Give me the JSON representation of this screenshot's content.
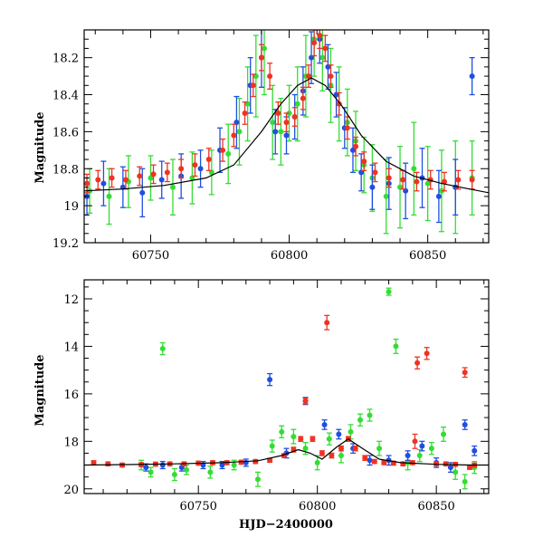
{
  "chart_data": [
    {
      "type": "scatter",
      "panel": "top",
      "title": "",
      "xlabel": "",
      "ylabel": "Magnitude",
      "xlim": [
        60726,
        60872
      ],
      "ylim": [
        19.2,
        18.05
      ],
      "y_inverted": true,
      "grid": false,
      "legend": "none",
      "xticks": [
        60750,
        60800,
        60850
      ],
      "yticks": [
        18.2,
        18.4,
        18.6,
        18.8,
        19,
        19.2
      ],
      "series": [
        {
          "color": "#33dd33",
          "x": [
            60728,
            60735,
            60742,
            60750,
            60758,
            60765,
            60772,
            60778,
            60782,
            60785,
            60788,
            60791,
            60794,
            60797,
            60800,
            60803,
            60806,
            60809,
            60812,
            60815,
            60818,
            60821,
            60824,
            60827,
            60830,
            60835,
            60840,
            60845,
            60850,
            60855,
            60860,
            60866
          ],
          "y": [
            18.92,
            18.95,
            18.87,
            18.85,
            18.9,
            18.85,
            18.82,
            18.72,
            18.6,
            18.45,
            18.3,
            18.15,
            18.55,
            18.6,
            18.5,
            18.45,
            18.3,
            18.1,
            18.2,
            18.35,
            18.45,
            18.55,
            18.65,
            18.78,
            18.85,
            18.95,
            18.9,
            18.8,
            18.88,
            18.92,
            18.9,
            18.85
          ],
          "err": [
            0.12,
            0.15,
            0.14,
            0.12,
            0.15,
            0.14,
            0.12,
            0.16,
            0.18,
            0.2,
            0.22,
            0.25,
            0.2,
            0.18,
            0.15,
            0.2,
            0.22,
            0.2,
            0.18,
            0.2,
            0.2,
            0.18,
            0.16,
            0.15,
            0.18,
            0.2,
            0.22,
            0.25,
            0.2,
            0.22,
            0.25,
            0.2
          ]
        },
        {
          "color": "#1f4fe0",
          "x": [
            60727,
            60733,
            60740,
            60747,
            60754,
            60761,
            60768,
            60775,
            60781,
            60786,
            60790,
            60795,
            60799,
            60802,
            60805,
            60808,
            60811,
            60814,
            60817,
            60820,
            60823,
            60826,
            60830,
            60836,
            60842,
            60848,
            60854,
            60860,
            60866
          ],
          "y": [
            18.95,
            18.88,
            18.9,
            18.93,
            18.86,
            18.84,
            18.8,
            18.7,
            18.55,
            18.35,
            18.2,
            18.6,
            18.62,
            18.52,
            18.38,
            18.2,
            18.1,
            18.25,
            18.4,
            18.58,
            18.7,
            18.82,
            18.9,
            18.88,
            18.92,
            18.85,
            18.95,
            18.9,
            18.3
          ],
          "err": [
            0.1,
            0.12,
            0.11,
            0.13,
            0.1,
            0.12,
            0.1,
            0.12,
            0.14,
            0.15,
            0.16,
            0.12,
            0.1,
            0.12,
            0.13,
            0.14,
            0.13,
            0.12,
            0.12,
            0.11,
            0.12,
            0.1,
            0.12,
            0.14,
            0.15,
            0.16,
            0.14,
            0.15,
            0.1
          ]
        },
        {
          "color": "#ee3322",
          "x": [
            60727,
            60731,
            60736,
            60741,
            60746,
            60751,
            60756,
            60761,
            60766,
            60771,
            60776,
            60780,
            60784,
            60787,
            60790,
            60793,
            60796,
            60799,
            60802,
            60805,
            60807,
            60809,
            60811,
            60813,
            60815,
            60818,
            60821,
            60824,
            60827,
            60831,
            60836,
            60841,
            60846,
            60851,
            60856,
            60861,
            60866
          ],
          "y": [
            18.88,
            18.86,
            18.85,
            18.86,
            18.84,
            18.83,
            18.82,
            18.8,
            18.78,
            18.75,
            18.7,
            18.62,
            18.5,
            18.35,
            18.2,
            18.3,
            18.5,
            18.55,
            18.52,
            18.42,
            18.3,
            18.12,
            18.08,
            18.15,
            18.3,
            18.45,
            18.58,
            18.68,
            18.76,
            18.82,
            18.85,
            18.86,
            18.87,
            18.86,
            18.87,
            18.86,
            18.86
          ],
          "err": [
            0.05,
            0.05,
            0.05,
            0.05,
            0.05,
            0.05,
            0.05,
            0.05,
            0.06,
            0.06,
            0.06,
            0.06,
            0.06,
            0.06,
            0.07,
            0.07,
            0.06,
            0.05,
            0.05,
            0.06,
            0.06,
            0.07,
            0.07,
            0.07,
            0.06,
            0.06,
            0.06,
            0.05,
            0.05,
            0.05,
            0.05,
            0.05,
            0.05,
            0.05,
            0.05,
            0.05,
            0.05
          ]
        }
      ],
      "model_curve": {
        "color": "#000000",
        "x": [
          60726,
          60740,
          60755,
          60770,
          60780,
          60790,
          60797,
          60803,
          60808,
          60813,
          60819,
          60826,
          60835,
          60845,
          60855,
          60865,
          60872
        ],
        "y": [
          18.92,
          18.91,
          18.89,
          18.85,
          18.78,
          18.6,
          18.45,
          18.35,
          18.31,
          18.35,
          18.46,
          18.62,
          18.76,
          18.84,
          18.88,
          18.91,
          18.93
        ]
      }
    },
    {
      "type": "scatter",
      "panel": "bottom",
      "title": "",
      "xlabel": "HJD−2400000",
      "ylabel": "Magnitude",
      "xlim": [
        60702,
        60872
      ],
      "ylim": [
        20.2,
        11.2
      ],
      "y_inverted": true,
      "grid": false,
      "legend": "none",
      "xticks": [
        60750,
        60800,
        60850
      ],
      "yticks": [
        12,
        14,
        16,
        18,
        20
      ],
      "series": [
        {
          "color": "#33dd33",
          "x": [
            60726,
            60730,
            60735,
            60740,
            60745,
            60755,
            60765,
            60775,
            60781,
            60785,
            60790,
            60795,
            60800,
            60805,
            60810,
            60814,
            60818,
            60822,
            60826,
            60830,
            60833,
            60838,
            60843,
            60848,
            60853,
            60858,
            60862,
            60866
          ],
          "y": [
            19.0,
            19.3,
            14.1,
            19.4,
            19.2,
            19.3,
            19.0,
            19.6,
            18.2,
            17.6,
            17.8,
            18.3,
            18.9,
            17.9,
            18.6,
            17.6,
            17.1,
            16.9,
            18.3,
            11.7,
            14.0,
            18.9,
            18.6,
            18.3,
            17.7,
            19.3,
            19.7,
            19.1
          ],
          "err": [
            0.2,
            0.2,
            0.25,
            0.25,
            0.2,
            0.25,
            0.2,
            0.3,
            0.25,
            0.25,
            0.3,
            0.25,
            0.3,
            0.25,
            0.3,
            0.3,
            0.25,
            0.25,
            0.3,
            0.15,
            0.3,
            0.3,
            0.25,
            0.25,
            0.3,
            0.3,
            0.3,
            0.25
          ]
        },
        {
          "color": "#1f4fe0",
          "x": [
            60728,
            60735,
            60743,
            60752,
            60760,
            60770,
            60780,
            60787,
            60795,
            60803,
            60809,
            60815,
            60822,
            60830,
            60838,
            60844,
            60850,
            60856,
            60862,
            60866
          ],
          "y": [
            19.1,
            19.0,
            19.1,
            19.0,
            19.0,
            18.9,
            15.4,
            18.5,
            16.3,
            17.3,
            17.7,
            18.3,
            18.8,
            18.8,
            18.6,
            18.2,
            18.9,
            19.1,
            17.3,
            18.4
          ],
          "err": [
            0.15,
            0.15,
            0.15,
            0.15,
            0.15,
            0.15,
            0.25,
            0.2,
            0.15,
            0.2,
            0.2,
            0.2,
            0.2,
            0.2,
            0.2,
            0.2,
            0.2,
            0.2,
            0.2,
            0.2
          ]
        },
        {
          "color": "#ee3322",
          "x": [
            60706,
            60712,
            60718,
            60726,
            60732,
            60738,
            60744,
            60750,
            60756,
            60762,
            60768,
            60774,
            60780,
            60786,
            60790,
            60793,
            60795,
            60798,
            60802,
            60806,
            60810,
            60813,
            60816,
            60820,
            60824,
            60828,
            60832,
            60836,
            60840,
            60842,
            60846,
            60850,
            60854,
            60858,
            60862,
            60864,
            60866
          ],
          "y": [
            18.9,
            18.95,
            19.0,
            18.98,
            18.96,
            18.95,
            18.95,
            18.92,
            18.9,
            18.9,
            18.88,
            18.85,
            18.8,
            18.6,
            18.35,
            17.9,
            16.3,
            17.9,
            18.5,
            18.6,
            18.3,
            17.9,
            18.3,
            18.7,
            18.85,
            18.9,
            18.92,
            18.95,
            18.9,
            14.7,
            14.3,
            18.95,
            18.95,
            18.97,
            15.1,
            19.1,
            19.0
          ],
          "err": [
            0.08,
            0.08,
            0.08,
            0.08,
            0.08,
            0.08,
            0.08,
            0.08,
            0.08,
            0.08,
            0.08,
            0.08,
            0.08,
            0.08,
            0.1,
            0.1,
            0.12,
            0.1,
            0.1,
            0.1,
            0.1,
            0.1,
            0.1,
            0.1,
            0.08,
            0.08,
            0.08,
            0.08,
            0.08,
            0.25,
            0.25,
            0.08,
            0.08,
            0.08,
            0.2,
            0.08,
            0.08
          ]
        },
        {
          "color": "#ee3322",
          "x": [
            60804,
            60841
          ],
          "y": [
            13.0,
            18.0
          ],
          "err": [
            0.3,
            0.3
          ]
        }
      ],
      "model_curve": {
        "color": "#000000",
        "x": [
          60702,
          60720,
          60740,
          60760,
          60775,
          60785,
          60792,
          60797,
          60802,
          60808,
          60813,
          60819,
          60826,
          60835,
          60850,
          60865,
          60872
        ],
        "y": [
          19.0,
          18.98,
          18.95,
          18.9,
          18.82,
          18.6,
          18.35,
          18.5,
          18.75,
          18.25,
          17.9,
          18.3,
          18.75,
          18.9,
          18.97,
          19.0,
          19.0
        ]
      }
    }
  ]
}
